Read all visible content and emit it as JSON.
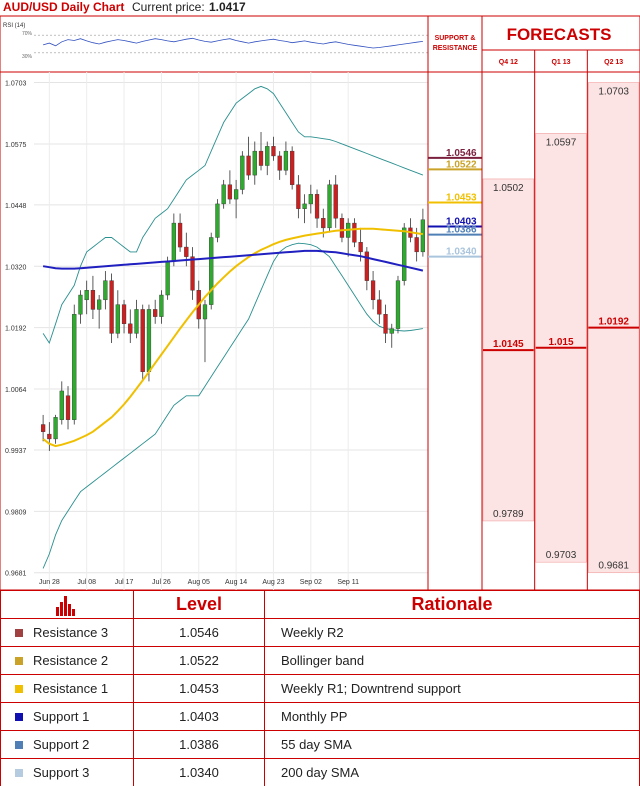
{
  "header": {
    "title": "AUD/USD Daily Chart",
    "price_label": "Current price:",
    "price_value": "1.0417"
  },
  "rsi_label": "RSI (14)",
  "rsi_ticks": [
    "70%",
    "30%"
  ],
  "support_resistance_header": "SUPPORT & RESISTANCE",
  "forecasts": {
    "title": "FORECASTS",
    "columns": [
      {
        "label": "Q4 12",
        "high": "1.0502",
        "mid": "1.0145",
        "low": "0.9789",
        "high_v": 1.0502,
        "mid_v": 1.0145,
        "low_v": 0.9789
      },
      {
        "label": "Q1 13",
        "high": "1.0597",
        "mid": "1.015",
        "low": "0.9703",
        "high_v": 1.0597,
        "mid_v": 1.015,
        "low_v": 0.9703
      },
      {
        "label": "Q2 13",
        "high": "1.0703",
        "mid": "1.0192",
        "low": "0.9681",
        "high_v": 1.0703,
        "mid_v": 1.0192,
        "low_v": 0.9681
      }
    ]
  },
  "levels": [
    {
      "name": "Resistance 3",
      "value": "1.0546",
      "v": 1.0546,
      "color": "#7a1f3d",
      "swatch": "#a04040",
      "rationale": "Weekly R2"
    },
    {
      "name": "Resistance 2",
      "value": "1.0522",
      "v": 1.0522,
      "color": "#c9a227",
      "swatch": "#c9a227",
      "rationale": "Bollinger band"
    },
    {
      "name": "Resistance 1",
      "value": "1.0453",
      "v": 1.0453,
      "color": "#f0c000",
      "swatch": "#f0c000",
      "rationale": "Weekly R1; Downtrend support"
    },
    {
      "name": "Support 1",
      "value": "1.0403",
      "v": 1.0403,
      "color": "#1010b0",
      "swatch": "#1010b0",
      "rationale": "Monthly PP"
    },
    {
      "name": "Support 2",
      "value": "1.0386",
      "v": 1.0386,
      "color": "#4f7fb5",
      "swatch": "#4f7fb5",
      "rationale": "55 day SMA"
    },
    {
      "name": "Support 3",
      "value": "1.0340",
      "v": 1.034,
      "color": "#a9c4dc",
      "swatch": "#b5cbe0",
      "rationale": "200 day SMA"
    }
  ],
  "table": {
    "header_level": "Level",
    "header_rationale": "Rationale"
  },
  "chart_data": {
    "type": "line",
    "title": "AUD/USD Daily Chart",
    "xlabel": "",
    "ylabel": "",
    "ylim": [
      0.9645,
      1.0725
    ],
    "y_ticks": [
      1.0703,
      1.0575,
      1.0448,
      1.032,
      1.0192,
      1.0064,
      0.9937,
      0.9809,
      0.9681
    ],
    "y_tick_labels": [
      "1.0703",
      "1.0575",
      "1.0448",
      "1.0320",
      "1.0192",
      "1.0064",
      "0.9937",
      "0.9809",
      "0.9681"
    ],
    "x_tick_labels": [
      "Jun 28",
      "Jul 08",
      "Jul 17",
      "Jul 26",
      "Aug 05",
      "Aug 14",
      "Aug 23",
      "Sep 02",
      "Sep 11"
    ],
    "x_tick_index": [
      1,
      7,
      13,
      19,
      25,
      31,
      37,
      43,
      49
    ],
    "candles": [
      [
        0.999,
        1.001,
        0.9955,
        0.9975
      ],
      [
        0.997,
        0.9995,
        0.9935,
        0.996
      ],
      [
        0.996,
        1.001,
        0.995,
        1.0005
      ],
      [
        1.0,
        1.008,
        0.999,
        1.006
      ],
      [
        1.005,
        1.007,
        0.998,
        1.0
      ],
      [
        1.0,
        1.024,
        0.999,
        1.022
      ],
      [
        1.022,
        1.027,
        1.02,
        1.026
      ],
      [
        1.025,
        1.029,
        1.022,
        1.027
      ],
      [
        1.027,
        1.03,
        1.021,
        1.023
      ],
      [
        1.023,
        1.026,
        1.019,
        1.025
      ],
      [
        1.025,
        1.031,
        1.023,
        1.029
      ],
      [
        1.029,
        1.0305,
        1.016,
        1.018
      ],
      [
        1.018,
        1.027,
        1.017,
        1.024
      ],
      [
        1.024,
        1.025,
        1.018,
        1.02
      ],
      [
        1.02,
        1.023,
        1.016,
        1.018
      ],
      [
        1.018,
        1.025,
        1.017,
        1.023
      ],
      [
        1.023,
        1.024,
        1.008,
        1.01
      ],
      [
        1.01,
        1.024,
        1.008,
        1.023
      ],
      [
        1.023,
        1.025,
        1.02,
        1.0215
      ],
      [
        1.0215,
        1.027,
        1.02,
        1.026
      ],
      [
        1.026,
        1.034,
        1.025,
        1.033
      ],
      [
        1.033,
        1.043,
        1.032,
        1.041
      ],
      [
        1.041,
        1.043,
        1.035,
        1.036
      ],
      [
        1.036,
        1.039,
        1.032,
        1.034
      ],
      [
        1.034,
        1.036,
        1.025,
        1.027
      ],
      [
        1.027,
        1.029,
        1.019,
        1.021
      ],
      [
        1.021,
        1.025,
        1.012,
        1.024
      ],
      [
        1.024,
        1.039,
        1.023,
        1.038
      ],
      [
        1.038,
        1.046,
        1.037,
        1.045
      ],
      [
        1.045,
        1.05,
        1.044,
        1.049
      ],
      [
        1.049,
        1.052,
        1.045,
        1.046
      ],
      [
        1.046,
        1.05,
        1.042,
        1.048
      ],
      [
        1.048,
        1.056,
        1.047,
        1.055
      ],
      [
        1.055,
        1.059,
        1.05,
        1.051
      ],
      [
        1.051,
        1.058,
        1.049,
        1.056
      ],
      [
        1.056,
        1.06,
        1.052,
        1.053
      ],
      [
        1.053,
        1.058,
        1.051,
        1.057
      ],
      [
        1.057,
        1.059,
        1.054,
        1.055
      ],
      [
        1.055,
        1.056,
        1.05,
        1.052
      ],
      [
        1.052,
        1.058,
        1.051,
        1.056
      ],
      [
        1.056,
        1.057,
        1.048,
        1.049
      ],
      [
        1.049,
        1.051,
        1.042,
        1.044
      ],
      [
        1.044,
        1.047,
        1.041,
        1.045
      ],
      [
        1.045,
        1.049,
        1.043,
        1.047
      ],
      [
        1.047,
        1.048,
        1.04,
        1.042
      ],
      [
        1.042,
        1.044,
        1.038,
        1.04
      ],
      [
        1.04,
        1.05,
        1.039,
        1.049
      ],
      [
        1.049,
        1.051,
        1.04,
        1.042
      ],
      [
        1.042,
        1.043,
        1.037,
        1.038
      ],
      [
        1.038,
        1.042,
        1.034,
        1.041
      ],
      [
        1.041,
        1.042,
        1.036,
        1.037
      ],
      [
        1.037,
        1.04,
        1.033,
        1.035
      ],
      [
        1.035,
        1.036,
        1.027,
        1.029
      ],
      [
        1.029,
        1.031,
        1.023,
        1.025
      ],
      [
        1.025,
        1.027,
        1.02,
        1.022
      ],
      [
        1.022,
        1.024,
        1.016,
        1.018
      ],
      [
        1.018,
        1.02,
        1.015,
        1.019
      ],
      [
        1.019,
        1.03,
        1.018,
        1.029
      ],
      [
        1.029,
        1.041,
        1.028,
        1.04
      ],
      [
        1.04,
        1.042,
        1.037,
        1.038
      ],
      [
        1.038,
        1.04,
        1.033,
        1.035
      ],
      [
        1.035,
        1.044,
        1.034,
        1.0417
      ]
    ],
    "series": [
      {
        "values": [
          0.996,
          0.995,
          0.9945,
          0.9948,
          0.9952,
          0.9956,
          0.9962,
          0.9968,
          0.9975,
          0.9985,
          0.9995,
          1.0005,
          1.0018,
          1.0032,
          1.0048,
          1.0065,
          1.0082,
          1.01,
          1.0118,
          1.0136,
          1.0154,
          1.0172,
          1.019,
          1.0207,
          1.0224,
          1.024,
          1.0256,
          1.027,
          1.0284,
          1.0297,
          1.0309,
          1.032,
          1.033,
          1.0339,
          1.0347,
          1.0354,
          1.036,
          1.0366,
          1.0371,
          1.0375,
          1.0378,
          1.0381,
          1.0384,
          1.0386,
          1.0388,
          1.039,
          1.0392,
          1.0394,
          1.0395,
          1.0396,
          1.0397,
          1.0398,
          1.0398,
          1.0398,
          1.0397,
          1.0396,
          1.0395,
          1.0394,
          1.0393,
          1.0391,
          1.0389,
          1.0387
        ]
      },
      {
        "values": [
          1.032,
          1.0318,
          1.0316,
          1.0315,
          1.0315,
          1.0315,
          1.0316,
          1.0317,
          1.0318,
          1.0319,
          1.032,
          1.0321,
          1.0322,
          1.0323,
          1.0324,
          1.0325,
          1.0326,
          1.0327,
          1.0328,
          1.0329,
          1.033,
          1.0331,
          1.0332,
          1.0333,
          1.0334,
          1.0335,
          1.0336,
          1.0337,
          1.0338,
          1.0339,
          1.034,
          1.0341,
          1.0342,
          1.0343,
          1.0344,
          1.0345,
          1.0346,
          1.0347,
          1.0348,
          1.0349,
          1.035,
          1.0351,
          1.0352,
          1.0352,
          1.0352,
          1.0351,
          1.035,
          1.0349,
          1.0347,
          1.0345,
          1.0343,
          1.0341,
          1.0338,
          1.0335,
          1.0332,
          1.0329,
          1.0326,
          1.0323,
          1.032,
          1.0317,
          1.0314,
          1.0311
        ]
      },
      {
        "values": [
          1.018,
          1.016,
          1.02,
          1.024,
          1.026,
          1.028,
          1.032,
          1.035,
          1.036,
          1.037,
          1.038,
          1.038,
          1.037,
          1.036,
          1.035,
          1.035,
          1.038,
          1.04,
          1.042,
          1.043,
          1.044,
          1.046,
          1.048,
          1.05,
          1.051,
          1.052,
          1.053,
          1.056,
          1.059,
          1.062,
          1.064,
          1.066,
          1.067,
          1.068,
          1.069,
          1.0695,
          1.069,
          1.068,
          1.066,
          1.064,
          1.062,
          1.06,
          1.059,
          1.059,
          1.0588,
          1.0586,
          1.0584,
          1.058,
          1.0575,
          1.057,
          1.0565,
          1.056,
          1.0555,
          1.055,
          1.0545,
          1.054,
          1.0535,
          1.053,
          1.0525,
          1.052,
          1.0515,
          1.051
        ]
      },
      {
        "values": [
          0.969,
          0.972,
          0.976,
          0.979,
          0.981,
          0.983,
          0.985,
          0.986,
          0.987,
          0.988,
          0.989,
          0.99,
          0.991,
          0.992,
          0.993,
          0.994,
          0.995,
          0.996,
          0.997,
          0.999,
          1.001,
          1.003,
          1.004,
          1.005,
          1.005,
          1.005,
          1.007,
          1.009,
          1.011,
          1.013,
          1.015,
          1.017,
          1.019,
          1.021,
          1.024,
          1.027,
          1.03,
          1.033,
          1.035,
          1.036,
          1.0365,
          1.0368,
          1.0367,
          1.0365,
          1.036,
          1.035,
          1.034,
          1.032,
          1.03,
          1.028,
          1.026,
          1.024,
          1.022,
          1.0205,
          1.0195,
          1.019,
          1.0188,
          1.0186,
          1.0185,
          1.0186,
          1.0188,
          1.019
        ]
      }
    ],
    "rsi": [
      48,
      52,
      46,
      55,
      60,
      58,
      62,
      57,
      53,
      50,
      54,
      57,
      60,
      58,
      55,
      52,
      56,
      59,
      62,
      60,
      57,
      55,
      58,
      61,
      63,
      59,
      56,
      54,
      57,
      60,
      62,
      58,
      55,
      52,
      55,
      57,
      59,
      61,
      58,
      56,
      53,
      55,
      57,
      54,
      52,
      50,
      53,
      55,
      52,
      49,
      47,
      45,
      43,
      41,
      42,
      44,
      46,
      48,
      50,
      52,
      54,
      56
    ]
  }
}
